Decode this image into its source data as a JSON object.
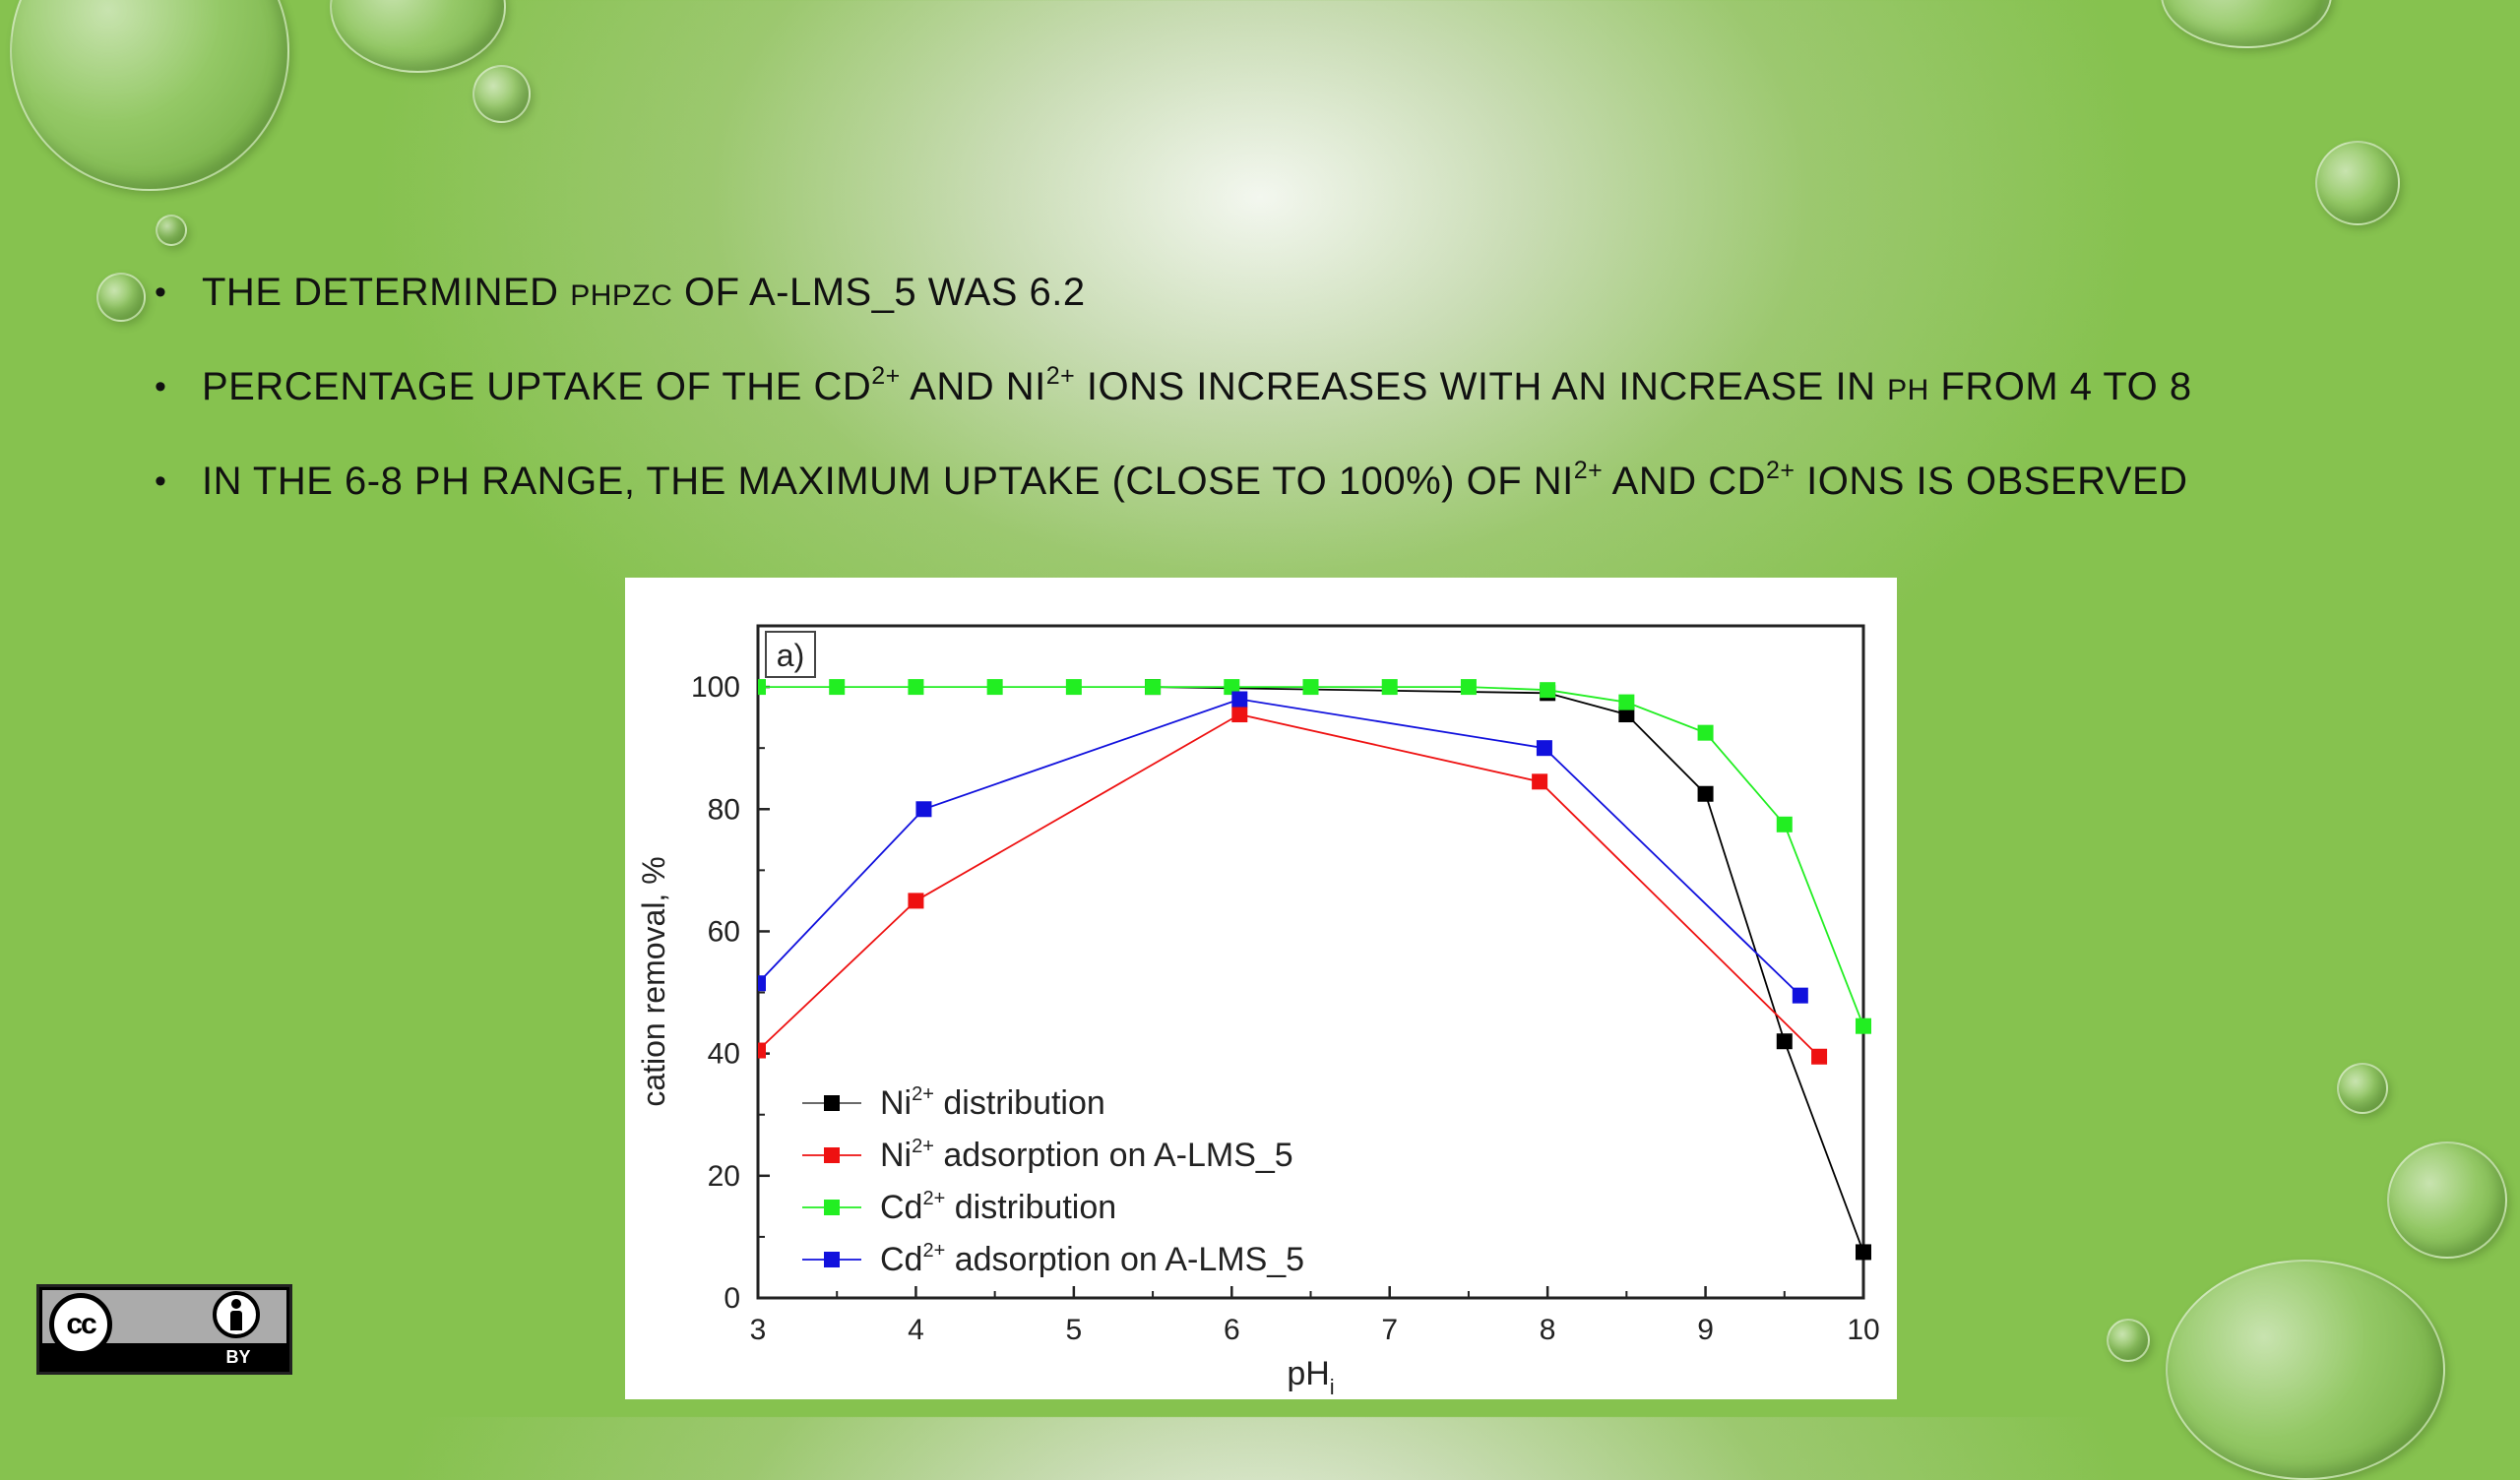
{
  "bullets": {
    "b1": {
      "pre": "THE DETERMINED ",
      "small": "PHPZC",
      "post": " OF A-LMS_5 WAS 6.2"
    },
    "b2": {
      "t1": "PERCENTAGE UPTAKE OF THE CD",
      "s1": "2+",
      "t2": " AND NI",
      "s2": "2+",
      "t3": " IONS INCREASES WITH AN INCREASE IN ",
      "small": "PH",
      "t4": " FROM 4 TO 8"
    },
    "b3": {
      "t1": "IN THE 6-8 PH RANGE, THE MAXIMUM UPTAKE (CLOSE TO 100%) OF NI",
      "s1": "2+",
      "t2": " AND CD",
      "s2": "2+",
      "t3": " IONS IS OBSERVED"
    }
  },
  "license": {
    "cc": "cc",
    "by": "BY",
    "cc_icon": "cc-icon",
    "by_icon": "person-icon"
  },
  "chart_data": {
    "type": "line",
    "panel_label": "a)",
    "xlabel": "pH",
    "xlabel_sub": "i",
    "ylabel": "cation removal, %",
    "xlim": [
      3,
      10
    ],
    "ylim": [
      0,
      110
    ],
    "xticks": [
      3,
      4,
      5,
      6,
      7,
      8,
      9,
      10
    ],
    "yticks": [
      0,
      20,
      40,
      60,
      80,
      100
    ],
    "legend_position": "bottom-left",
    "series": [
      {
        "name": "Ni",
        "sup": "2+",
        "suffix": " distribution",
        "color": "#000000",
        "x": [
          5.5,
          8.0,
          8.5,
          9.0,
          9.5,
          10.0
        ],
        "y": [
          100,
          99,
          95.5,
          82.5,
          42,
          7.5
        ]
      },
      {
        "name": "Ni",
        "sup": "2+",
        "suffix": " adsorption on A-LMS_5",
        "color": "#ee1111",
        "x": [
          3.0,
          4.0,
          6.05,
          7.95,
          9.72
        ],
        "y": [
          40.5,
          65,
          95.5,
          84.5,
          39.5
        ]
      },
      {
        "name": "Cd",
        "sup": "2+",
        "suffix": " distribution",
        "color": "#22ee22",
        "x": [
          3.0,
          3.5,
          4.0,
          4.5,
          5.0,
          5.5,
          6.0,
          6.5,
          7.0,
          7.5,
          8.0,
          8.5,
          9.0,
          9.5,
          10.0
        ],
        "y": [
          100,
          100,
          100,
          100,
          100,
          100,
          100,
          100,
          100,
          100,
          99.5,
          97.5,
          92.5,
          77.5,
          44.5
        ]
      },
      {
        "name": "Cd",
        "sup": "2+",
        "suffix": " adsorption on A-LMS_5",
        "color": "#1111dd",
        "x": [
          3.0,
          4.05,
          6.05,
          7.98,
          9.6
        ],
        "y": [
          51.5,
          80,
          98,
          90,
          49.5
        ]
      }
    ]
  }
}
